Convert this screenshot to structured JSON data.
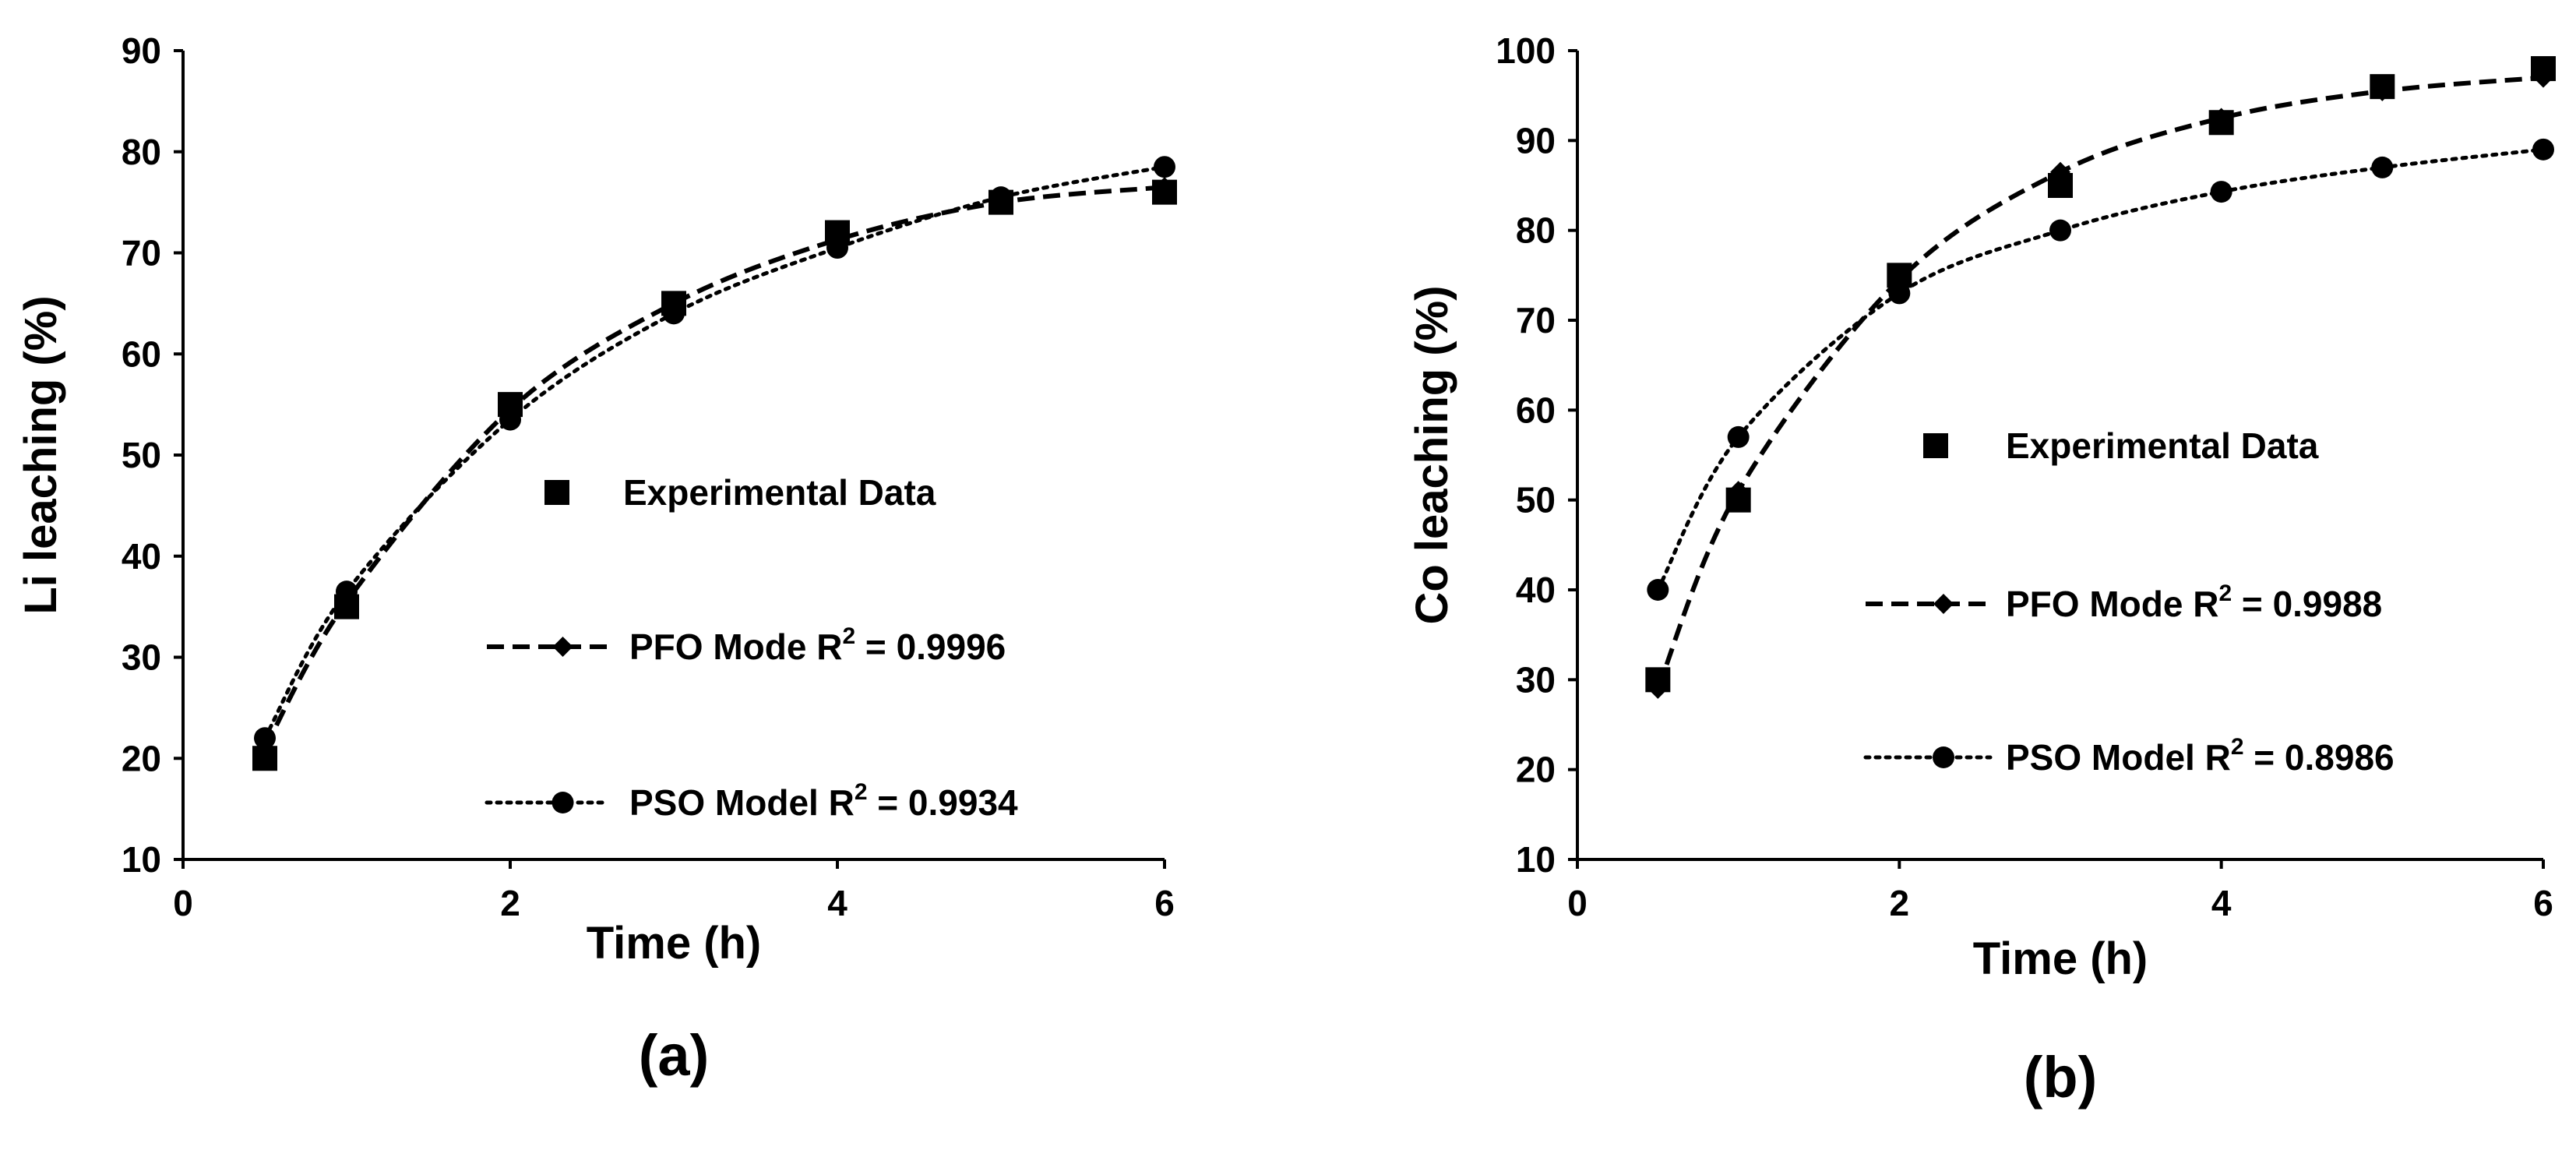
{
  "chart_data": [
    {
      "type": "line",
      "panel_label": "(a)",
      "xlabel": "Time (h)",
      "ylabel": "Li leaching (%)",
      "xlim": [
        0,
        6
      ],
      "ylim": [
        10,
        90
      ],
      "xticks": [
        0,
        2,
        4,
        6
      ],
      "yticks": [
        10,
        20,
        30,
        40,
        50,
        60,
        70,
        80,
        90
      ],
      "experimental": {
        "name": "Experimental Data",
        "x": [
          0.5,
          1,
          2,
          3,
          4,
          5,
          6
        ],
        "y": [
          20,
          35,
          55,
          65,
          72,
          75,
          76
        ]
      },
      "series": [
        {
          "name": "PFO Mode",
          "legend_prefix": "PFO Mode R",
          "r2": "= 0.9996",
          "style": "dashed",
          "marker": "diamond",
          "x": [
            0.5,
            1,
            2,
            3,
            4,
            5,
            6
          ],
          "y": [
            21,
            35.5,
            54.5,
            65,
            71.3,
            75,
            76.5
          ]
        },
        {
          "name": "PSO Model",
          "legend_prefix": "PSO Model R",
          "r2": "= 0.9934",
          "style": "dotted",
          "marker": "circle",
          "x": [
            0.5,
            1,
            2,
            3,
            4,
            5,
            6
          ],
          "y": [
            22,
            36.5,
            53.5,
            64,
            70.5,
            75.5,
            78.5
          ]
        }
      ]
    },
    {
      "type": "line",
      "panel_label": "(b)",
      "xlabel": "Time (h)",
      "ylabel": "Co leaching (%)",
      "xlim": [
        0,
        6
      ],
      "ylim": [
        10,
        100
      ],
      "xticks": [
        0,
        2,
        4,
        6
      ],
      "yticks": [
        10,
        20,
        30,
        40,
        50,
        60,
        70,
        80,
        90,
        100
      ],
      "experimental": {
        "name": "Experimental Data",
        "x": [
          0.5,
          1,
          2,
          3,
          4,
          5,
          6
        ],
        "y": [
          30,
          50,
          75,
          85,
          92,
          96,
          98
        ]
      },
      "series": [
        {
          "name": "PFO Mode",
          "legend_prefix": "PFO Mode R",
          "r2": "= 0.9988",
          "style": "dashed",
          "marker": "diamond",
          "x": [
            0.5,
            1,
            2,
            3,
            4,
            5,
            6
          ],
          "y": [
            29,
            51,
            74.5,
            86.5,
            92.5,
            95.5,
            97
          ]
        },
        {
          "name": "PSO Model",
          "legend_prefix": "PSO Model R",
          "r2": "= 0.8986",
          "style": "dotted",
          "marker": "circle",
          "x": [
            0.5,
            1,
            2,
            3,
            4,
            5,
            6
          ],
          "y": [
            40,
            57,
            73,
            80,
            84.3,
            87,
            89
          ]
        }
      ]
    }
  ]
}
